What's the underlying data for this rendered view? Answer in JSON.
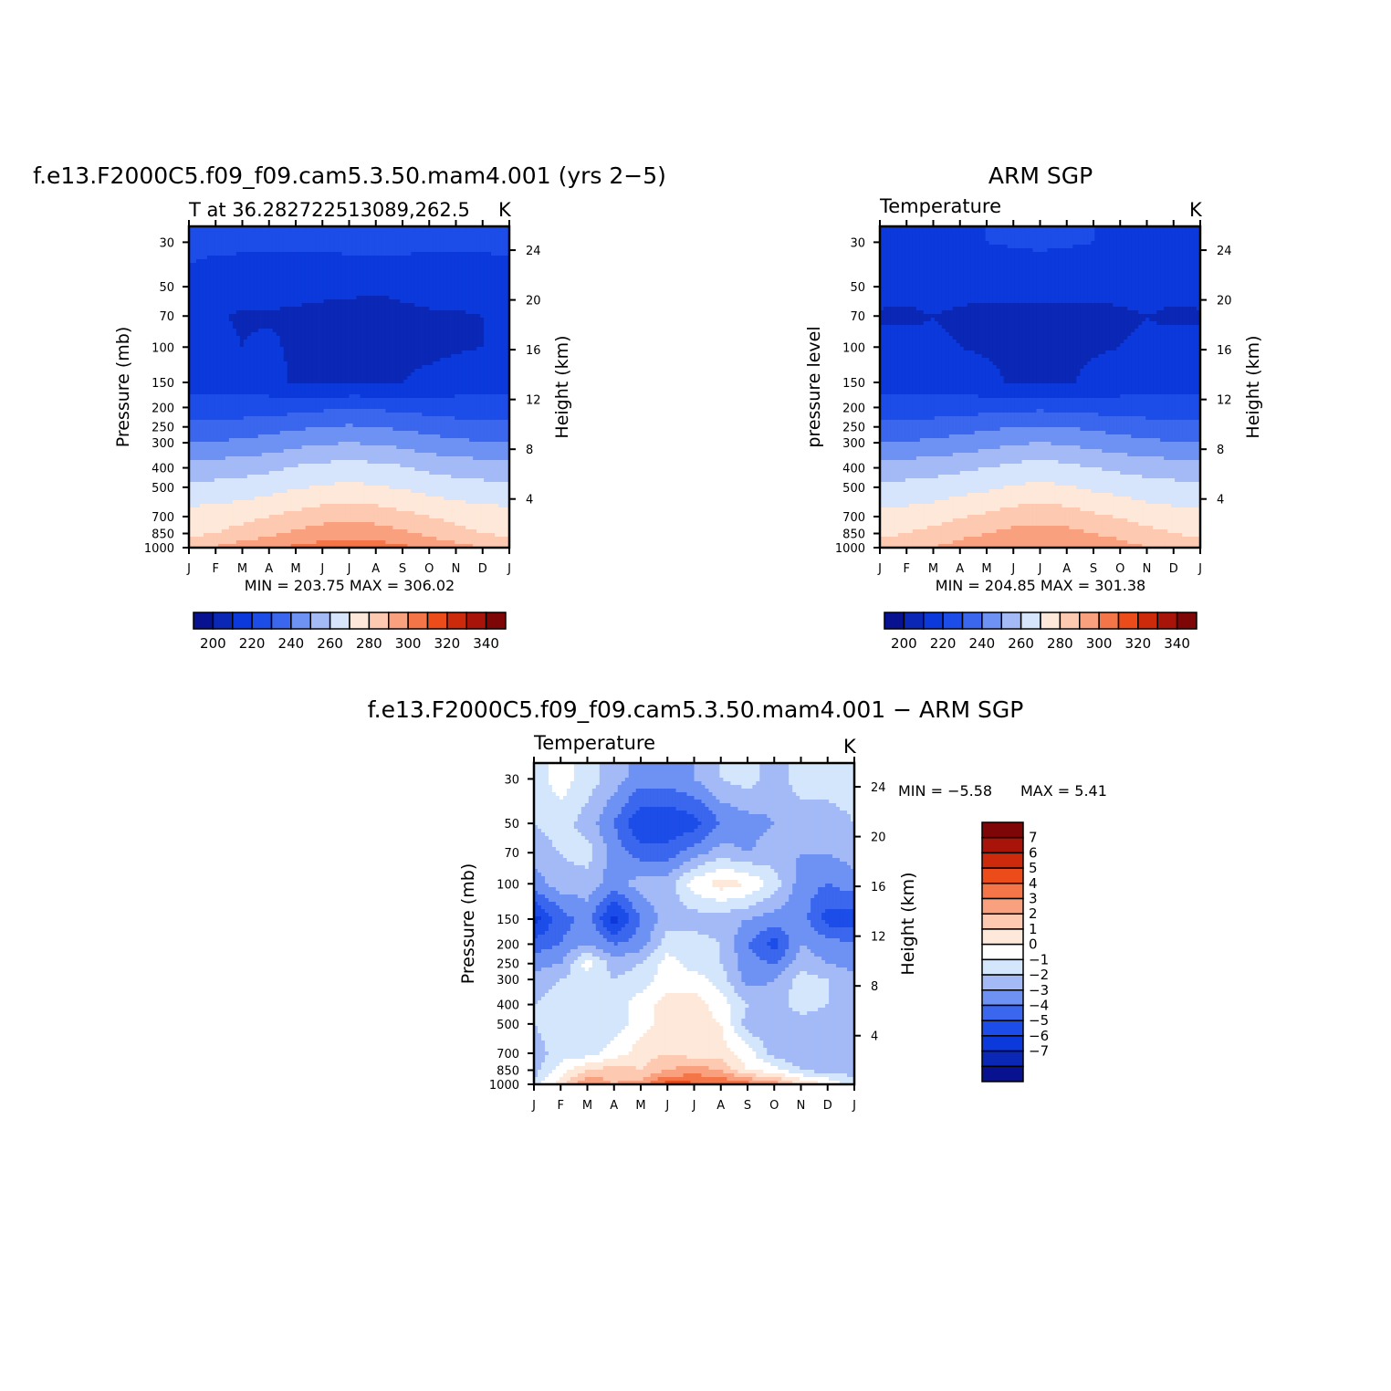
{
  "colors": {
    "abs_palette": [
      "#08118f",
      "#0a27b5",
      "#0b39db",
      "#1d4de8",
      "#3a67ee",
      "#6e92f3",
      "#a3baf7",
      "#d7e5fc",
      "#fde8d9",
      "#fdc9b1",
      "#f9a07f",
      "#f47548",
      "#ec4b1a",
      "#cc2a0a",
      "#a8140a",
      "#7e0606"
    ],
    "diff_palette": [
      "#08118f",
      "#0a27b5",
      "#0b39db",
      "#1d4de8",
      "#3a67ee",
      "#6e92f3",
      "#a3baf7",
      "#d4e6fb",
      "#ffffff",
      "#fde8d9",
      "#fdc9b1",
      "#f9a07f",
      "#f47548",
      "#ec4b1a",
      "#cc2a0a",
      "#a8140a",
      "#7e0606"
    ]
  },
  "panels": {
    "model": {
      "title": "f.e13.F2000C5.f09_f09.cam5.3.50.mam4.001 (yrs 2−5)",
      "left_label": "T at 36.282722513089,262.5",
      "units": "K",
      "ylabel": "Pressure (mb)",
      "ylabel_right": "Height (km)",
      "minmax": "MIN = 203.75 MAX = 306.02"
    },
    "obs": {
      "title": "ARM SGP",
      "left_label": "Temperature",
      "units": "K",
      "ylabel": "pressure level",
      "ylabel_right": "Height (km)",
      "minmax": "MIN = 204.85 MAX = 301.38"
    },
    "diff": {
      "title": "f.e13.F2000C5.f09_f09.cam5.3.50.mam4.001 − ARM SGP",
      "left_label": "Temperature",
      "units": "K",
      "ylabel": "Pressure (mb)",
      "ylabel_right": "Height (km)",
      "minmax_min": "MIN = −5.58",
      "minmax_max": "MAX = 5.41"
    }
  },
  "chart_data": [
    {
      "type": "heatmap",
      "title": "T at 36.282722513089,262.5",
      "x": [
        "J",
        "F",
        "M",
        "A",
        "M",
        "J",
        "J",
        "A",
        "S",
        "O",
        "N",
        "D",
        "J"
      ],
      "y_pressure": [
        1000,
        850,
        700,
        500,
        400,
        300,
        250,
        200,
        150,
        100,
        70,
        50,
        30
      ],
      "y_height_km": [
        4,
        8,
        12,
        16,
        20,
        24
      ],
      "ylabel": "Pressure (mb)",
      "ylabel_right": "Height (km)",
      "log_y": true,
      "z": [
        [
          288,
          291,
          295,
          299,
          302,
          304,
          305,
          305,
          302,
          298,
          294,
          290,
          288
        ],
        [
          278,
          280,
          284,
          288,
          292,
          295,
          296,
          295,
          292,
          288,
          283,
          280,
          278
        ],
        [
          274,
          275,
          277,
          280,
          283,
          286,
          287,
          286,
          283,
          280,
          277,
          275,
          274
        ],
        [
          262,
          263,
          264,
          266,
          269,
          271,
          272,
          271,
          269,
          266,
          264,
          263,
          262
        ],
        [
          254,
          255,
          256,
          258,
          261,
          263,
          264,
          263,
          261,
          258,
          256,
          255,
          254
        ],
        [
          240,
          241,
          242,
          244,
          247,
          249,
          250,
          249,
          247,
          244,
          242,
          241,
          240
        ],
        [
          233,
          233,
          234,
          236,
          238,
          240,
          241,
          240,
          238,
          236,
          234,
          233,
          233
        ],
        [
          225,
          225,
          225,
          226,
          226,
          228,
          230,
          229,
          227,
          226,
          225,
          225,
          225
        ],
        [
          215,
          215,
          214,
          213,
          209,
          208,
          208,
          209,
          210,
          212,
          214,
          215,
          215
        ],
        [
          215,
          212,
          210,
          212,
          208,
          207,
          207,
          207,
          208,
          208,
          209,
          210,
          212
        ],
        [
          214,
          211,
          209,
          209,
          208,
          207,
          207,
          207,
          208,
          209,
          209,
          210,
          211
        ],
        [
          218,
          215,
          214,
          214,
          214,
          213,
          212,
          211,
          212,
          213,
          214,
          214,
          215
        ],
        [
          222,
          222,
          222,
          222,
          222,
          222,
          223,
          224,
          223,
          222,
          222,
          222,
          222
        ]
      ],
      "levels": [
        200,
        210,
        220,
        230,
        240,
        250,
        260,
        270,
        280,
        290,
        300,
        310,
        320,
        330,
        340
      ],
      "colorbar_labels": [
        "200",
        "220",
        "240",
        "260",
        "280",
        "300",
        "320",
        "340"
      ],
      "units": "K",
      "min": 203.75,
      "max": 306.02
    },
    {
      "type": "heatmap",
      "title": "Temperature",
      "x": [
        "J",
        "F",
        "M",
        "A",
        "M",
        "J",
        "J",
        "A",
        "S",
        "O",
        "N",
        "D",
        "J"
      ],
      "y_pressure": [
        1000,
        850,
        700,
        500,
        400,
        300,
        250,
        200,
        150,
        100,
        70,
        50,
        30
      ],
      "y_height_km": [
        4,
        8,
        12,
        16,
        20,
        24
      ],
      "ylabel": "pressure level",
      "ylabel_right": "Height (km)",
      "log_y": true,
      "z": [
        [
          284,
          287,
          290,
          294,
          297,
          299,
          300,
          299,
          297,
          294,
          290,
          286,
          284
        ],
        [
          278,
          280,
          283,
          287,
          290,
          293,
          294,
          293,
          290,
          287,
          283,
          280,
          278
        ],
        [
          273,
          274,
          276,
          279,
          282,
          285,
          286,
          285,
          282,
          279,
          276,
          274,
          273
        ],
        [
          262,
          263,
          264,
          266,
          268,
          271,
          272,
          271,
          268,
          266,
          264,
          263,
          262
        ],
        [
          254,
          255,
          256,
          258,
          260,
          263,
          264,
          263,
          260,
          258,
          256,
          255,
          254
        ],
        [
          240,
          241,
          242,
          244,
          246,
          249,
          250,
          249,
          246,
          244,
          242,
          241,
          240
        ],
        [
          233,
          233,
          234,
          236,
          238,
          240,
          241,
          240,
          238,
          236,
          234,
          233,
          233
        ],
        [
          225,
          225,
          225,
          226,
          226,
          227,
          228,
          227,
          226,
          225,
          225,
          225,
          225
        ],
        [
          215,
          215,
          215,
          214,
          212,
          209,
          208,
          209,
          212,
          214,
          215,
          215,
          215
        ],
        [
          213,
          212,
          211,
          210,
          209,
          209,
          209,
          209,
          209,
          210,
          211,
          212,
          213
        ],
        [
          209,
          209,
          210,
          209,
          208,
          208,
          208,
          208,
          208,
          209,
          210,
          209,
          209
        ],
        [
          213,
          212,
          212,
          212,
          212,
          212,
          212,
          212,
          212,
          212,
          212,
          212,
          213
        ],
        [
          219,
          219,
          219,
          219,
          220,
          221,
          222,
          221,
          220,
          219,
          219,
          219,
          219
        ]
      ],
      "levels": [
        200,
        210,
        220,
        230,
        240,
        250,
        260,
        270,
        280,
        290,
        300,
        310,
        320,
        330,
        340
      ],
      "colorbar_labels": [
        "200",
        "220",
        "240",
        "260",
        "280",
        "300",
        "320",
        "340"
      ],
      "units": "K",
      "min": 204.85,
      "max": 301.38
    },
    {
      "type": "heatmap",
      "title": "Temperature",
      "x": [
        "J",
        "F",
        "M",
        "A",
        "M",
        "J",
        "J",
        "A",
        "S",
        "O",
        "N",
        "D",
        "J"
      ],
      "y_pressure": [
        1000,
        850,
        700,
        500,
        400,
        300,
        250,
        200,
        150,
        100,
        70,
        50,
        30
      ],
      "y_height_km": [
        4,
        8,
        12,
        16,
        20,
        24
      ],
      "ylabel": "Pressure (mb)",
      "ylabel_right": "Height (km)",
      "log_y": true,
      "z": [
        [
          -0.5,
          1.5,
          4.0,
          3.0,
          3.5,
          5.4,
          5.2,
          5.0,
          4.5,
          3.5,
          2.0,
          1.0,
          -0.5
        ],
        [
          -1.5,
          0.5,
          2.0,
          2.5,
          2.0,
          3.0,
          3.5,
          3.0,
          1.0,
          0.5,
          -1.0,
          -1.5,
          -1.5
        ],
        [
          -1.5,
          -0.5,
          -0.5,
          0.5,
          1.5,
          2.0,
          1.5,
          1.5,
          0.5,
          -1.5,
          -2.0,
          -1.5,
          -1.5
        ],
        [
          -1.0,
          -0.5,
          -0.5,
          -0.5,
          0.5,
          1.5,
          1.5,
          1.0,
          -1.5,
          -2.0,
          -1.5,
          -1.5,
          -1.0
        ],
        [
          -1.0,
          -0.5,
          -0.5,
          -0.5,
          0.5,
          1.5,
          1.5,
          0.5,
          -1.0,
          -1.5,
          -0.5,
          -1.0,
          -1.0
        ],
        [
          -1.5,
          -1.0,
          -0.5,
          -1.0,
          -0.5,
          0.5,
          0.5,
          -0.5,
          -2.5,
          -2.0,
          -0.5,
          -1.0,
          -1.5
        ],
        [
          -2.5,
          -2.0,
          0.5,
          -1.5,
          -1.0,
          0.5,
          -0.5,
          -1.0,
          -2.5,
          -3.0,
          -1.5,
          -2.0,
          -2.5
        ],
        [
          -3.5,
          -3.0,
          -2.0,
          -3.0,
          -2.5,
          -0.5,
          -0.5,
          -1.0,
          -3.0,
          -4.5,
          -2.0,
          -2.5,
          -3.0
        ],
        [
          -5.5,
          -3.5,
          -2.5,
          -5.5,
          -3.0,
          -1.5,
          -1.5,
          -1.5,
          -2.0,
          -2.5,
          -2.5,
          -4.5,
          -4.5
        ],
        [
          -2.5,
          -1.5,
          -1.5,
          -2.5,
          -1.5,
          -1.5,
          0.5,
          1.5,
          1.0,
          -0.5,
          -2.5,
          -3.0,
          -2.5
        ],
        [
          -1.5,
          -1.0,
          -0.5,
          -2.5,
          -3.5,
          -3.5,
          -2.5,
          -1.5,
          -2.0,
          -1.5,
          -2.0,
          -2.0,
          -1.5
        ],
        [
          -1.0,
          -0.5,
          -1.5,
          -3.0,
          -5.0,
          -5.0,
          -4.5,
          -3.0,
          -2.5,
          -2.0,
          -1.5,
          -1.5,
          -1.0
        ],
        [
          -0.5,
          0.5,
          -0.5,
          -1.5,
          -2.5,
          -2.5,
          -2.0,
          -1.0,
          -0.5,
          -1.5,
          -0.5,
          -0.5,
          -0.5
        ]
      ],
      "levels": [
        -7,
        -6,
        -5,
        -4,
        -3,
        -2,
        -1,
        0,
        1,
        2,
        3,
        4,
        5,
        6,
        7
      ],
      "colorbar_labels": [
        "7",
        "6",
        "5",
        "4",
        "3",
        "2",
        "1",
        "0",
        "−1",
        "−2",
        "−3",
        "−4",
        "−5",
        "−6",
        "−7"
      ],
      "units": "K",
      "min": -5.58,
      "max": 5.41
    }
  ]
}
